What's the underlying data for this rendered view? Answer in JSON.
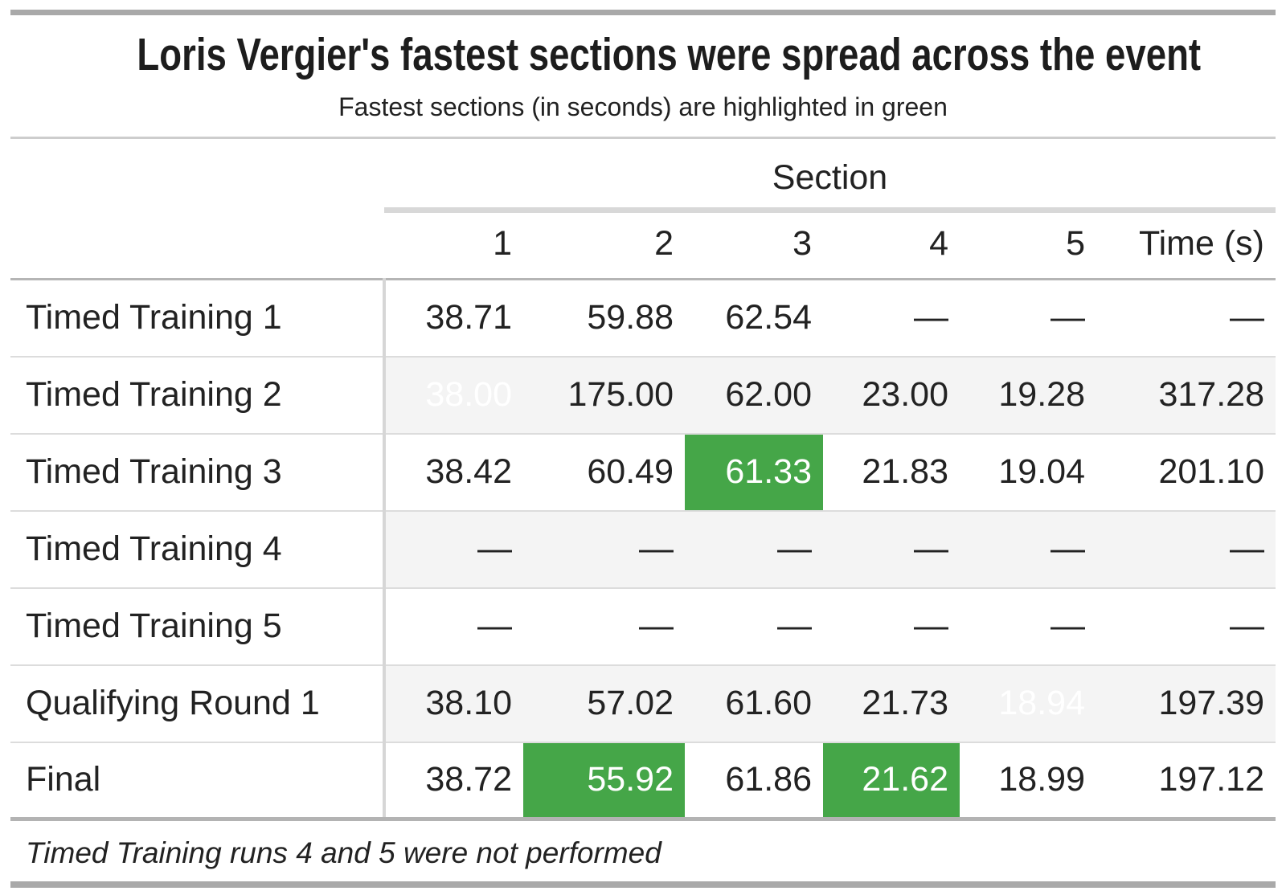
{
  "header": {
    "title": "Loris Vergier's fastest sections were spread across the event",
    "subtitle": "Fastest sections (in seconds) are highlighted in green"
  },
  "chart_data": {
    "type": "table",
    "title": "Loris Vergier's fastest sections were spread across the event",
    "subtitle": "Fastest sections (in seconds) are highlighted in green",
    "group_header": "Section",
    "columns": [
      "1",
      "2",
      "3",
      "4",
      "5",
      "Time (s)"
    ],
    "rows": [
      {
        "label": "Timed Training 1",
        "values": [
          "38.71",
          "59.88",
          "62.54",
          "—",
          "—",
          "—"
        ],
        "highlight": []
      },
      {
        "label": "Timed Training 2",
        "values": [
          "38.00",
          "175.00",
          "62.00",
          "23.00",
          "19.28",
          "317.28"
        ],
        "highlight": [
          0
        ]
      },
      {
        "label": "Timed Training 3",
        "values": [
          "38.42",
          "60.49",
          "61.33",
          "21.83",
          "19.04",
          "201.10"
        ],
        "highlight": [
          2
        ]
      },
      {
        "label": "Timed Training 4",
        "values": [
          "—",
          "—",
          "—",
          "—",
          "—",
          "—"
        ],
        "highlight": []
      },
      {
        "label": "Timed Training 5",
        "values": [
          "—",
          "—",
          "—",
          "—",
          "—",
          "—"
        ],
        "highlight": []
      },
      {
        "label": "Qualifying Round 1",
        "values": [
          "38.10",
          "57.02",
          "61.60",
          "21.73",
          "18.94",
          "197.39"
        ],
        "highlight": [
          4
        ]
      },
      {
        "label": "Final",
        "values": [
          "38.72",
          "55.92",
          "61.86",
          "21.62",
          "18.99",
          "197.12"
        ],
        "highlight": [
          1,
          3
        ]
      }
    ],
    "footnote": "Timed Training runs 4 and 5 were not performed",
    "colors": {
      "highlight_green": "#45a648",
      "stripe_gray": "#f4f4f4"
    },
    "legend_position": "none",
    "grid": "horizontal-rules"
  }
}
